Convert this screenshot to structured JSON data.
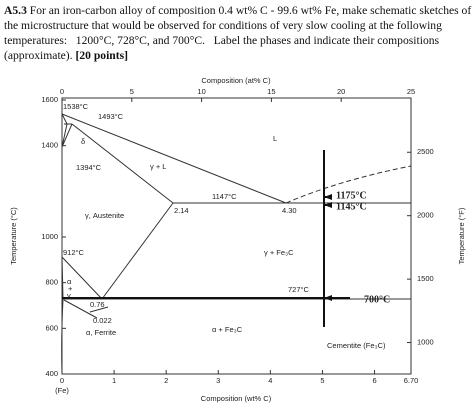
{
  "question": {
    "label": "A5.3",
    "lines": [
      "For an iron-carbon alloy of composition 0.4 wt% C - 99.6 wt% Fe, make schematic sketches of",
      "the microstructure that would be observed for conditions of very slow cooling at the following",
      "temperatures:   1200°C, 728°C, and 700°C.   Label the phases and indicate their compositions",
      "(approximate)."
    ],
    "points": "[20 points]"
  },
  "chart_data": {
    "type": "phase-diagram",
    "x_label_top": "Composition (at% C)",
    "x_label": "Composition (wt% C)",
    "y_label": "Temperature (°C)",
    "y2_label": "Temperature (°F)",
    "x_note": "(Fe)",
    "xlim": [
      0,
      6.7
    ],
    "xticks": [
      0,
      1,
      2,
      3,
      4,
      5,
      6,
      {
        "value": 6.7,
        "label": "6.70"
      }
    ],
    "x2lim": [
      0,
      25
    ],
    "x2ticks": [
      0,
      5,
      10,
      15,
      20,
      25
    ],
    "ylim": [
      400,
      1600
    ],
    "yticks": [
      400,
      600,
      800,
      1000,
      1400,
      1600
    ],
    "y2lim": [
      752,
      2912
    ],
    "y2ticks": [
      1000,
      1500,
      2000,
      2500
    ],
    "annotations": [
      "1538°C",
      "1493°C",
      "δ",
      "1394°C",
      "γ + L",
      "L",
      "1147°C",
      "2.14",
      "4.30",
      "γ, Austenite",
      "912°C",
      "γ + Fe₃C",
      "α",
      "+",
      "γ",
      "727°C",
      "0.76",
      "0.022",
      "α, Ferrite",
      "α + Fe₃C",
      "Cementite (Fe₃C)",
      "1175°C",
      "1145°C",
      "700°C"
    ]
  }
}
